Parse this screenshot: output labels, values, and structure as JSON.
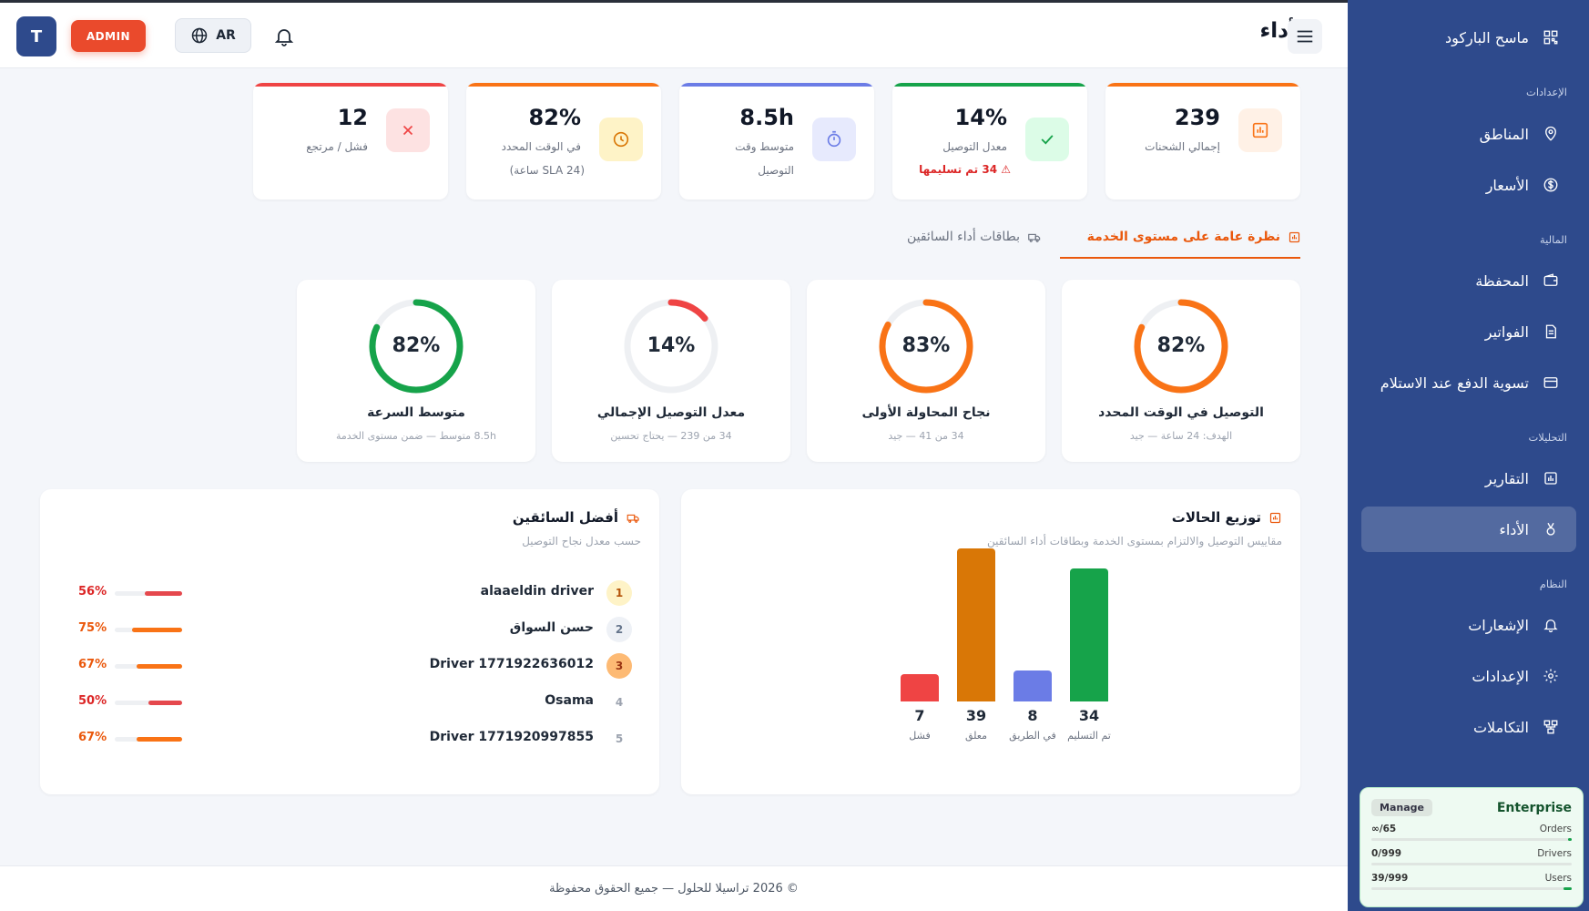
{
  "header": {
    "title": "الأداء",
    "avatar_letter": "T",
    "role_badge": "ADMIN",
    "language": "AR"
  },
  "kpis": [
    {
      "value": "239",
      "label": "إجمالي الشحنات",
      "accent": "#f97316"
    },
    {
      "value": "14%",
      "label": "معدل التوصيل",
      "warning": "34 تم تسليمها",
      "accent": "#16a34a"
    },
    {
      "value": "8.5h",
      "label": "متوسط وقت",
      "label2": "التوصيل",
      "accent": "#6b7ce6"
    },
    {
      "value": "82%",
      "label": "في الوقت المحدد",
      "label2": "(SLA 24 ساعة)",
      "accent": "#f97316"
    },
    {
      "value": "12",
      "label": "فشل / مرتجع",
      "accent": "#ef4444"
    }
  ],
  "tabs": {
    "active": "نظرة عامة على مستوى الخدمة",
    "inactive": "بطاقات أداء السائقين"
  },
  "gauges": [
    {
      "value": "82%",
      "percent": 82,
      "title": "التوصيل في الوقت المحدد",
      "subtitle": "الهدف: 24 ساعة — جيد",
      "color": "#f97316"
    },
    {
      "value": "83%",
      "percent": 83,
      "title": "نجاح المحاولة الأولى",
      "subtitle": "34 من 41 — جيد",
      "color": "#f97316"
    },
    {
      "value": "14%",
      "percent": 14,
      "title": "معدل التوصيل الإجمالي",
      "subtitle": "34 من 239 — يحتاج تحسين",
      "color": "#ef4444"
    },
    {
      "value": "82%",
      "percent": 82,
      "title": "متوسط السرعة",
      "subtitle": "8.5h متوسط — ضمن مستوى الخدمة",
      "color": "#16a34a"
    }
  ],
  "status_panel": {
    "title": "توزيع الحالات",
    "subtitle": "مقاييس التوصيل والالتزام بمستوى الخدمة وبطاقات أداء السائقين"
  },
  "chart_data": {
    "type": "bar",
    "title": "توزيع الحالات",
    "categories": [
      "تم التسليم",
      "في الطريق",
      "معلق",
      "فشل"
    ],
    "values": [
      34,
      8,
      39,
      7
    ],
    "colors": [
      "#16a34a",
      "#6b7ce6",
      "#d97706",
      "#ef4444"
    ],
    "ylim": [
      0,
      39
    ]
  },
  "drivers_panel": {
    "title": "أفضل السائقين",
    "subtitle": "حسب معدل نجاح التوصيل",
    "drivers": [
      {
        "rank": "1",
        "name": "alaaeldin driver",
        "pct": "56%",
        "percent": 56,
        "color": "#e5484d",
        "pct_color": "#dc2626",
        "rank_bg": "#fef3c7",
        "rank_color": "#b45309"
      },
      {
        "rank": "2",
        "name": "حسن السواق",
        "pct": "75%",
        "percent": 75,
        "color": "#f97316",
        "pct_color": "#ea580c",
        "rank_bg": "#eef1f6",
        "rank_color": "#64748b"
      },
      {
        "rank": "3",
        "name": "Driver 1771922636012",
        "pct": "67%",
        "percent": 67,
        "color": "#f97316",
        "pct_color": "#ea580c",
        "rank_bg": "#fdba74",
        "rank_color": "#9a3412"
      },
      {
        "rank": "4",
        "name": "Osama",
        "pct": "50%",
        "percent": 50,
        "color": "#e5484d",
        "pct_color": "#dc2626",
        "rank_bg": "#ffffff",
        "rank_color": "#9ca3af"
      },
      {
        "rank": "5",
        "name": "Driver 1771920997855",
        "pct": "67%",
        "percent": 67,
        "color": "#f97316",
        "pct_color": "#ea580c",
        "rank_bg": "#ffffff",
        "rank_color": "#9ca3af"
      }
    ]
  },
  "sidebar": {
    "items": [
      {
        "label": "ماسح الباركود",
        "icon": "qr-icon"
      },
      {
        "label": "المناطق",
        "icon": "location-pin-icon"
      },
      {
        "label": "الأسعار",
        "icon": "dollar-icon"
      },
      {
        "label": "المحفظة",
        "icon": "wallet-icon"
      },
      {
        "label": "الفواتير",
        "icon": "invoice-icon"
      },
      {
        "label": "تسوية الدفع عند الاستلام",
        "icon": "card-icon"
      },
      {
        "label": "التقارير",
        "icon": "report-icon"
      },
      {
        "label": "الأداء",
        "icon": "medal-icon"
      },
      {
        "label": "الإشعارات",
        "icon": "bell-icon"
      },
      {
        "label": "الإعدادات",
        "icon": "gear-icon"
      },
      {
        "label": "التكاملات",
        "icon": "integrations-icon"
      }
    ],
    "sections": [
      "الإعدادات",
      "المالية",
      "التحليلات",
      "النظام"
    ]
  },
  "plan": {
    "name": "Enterprise",
    "manage": "Manage",
    "rows": [
      {
        "label": "Orders",
        "value": "∞/65",
        "percent": 2
      },
      {
        "label": "Drivers",
        "value": "0/999",
        "percent": 0
      },
      {
        "label": "Users",
        "value": "39/999",
        "percent": 4
      }
    ]
  },
  "footer": {
    "text": "© 2026 تراسيلا للحلول — جميع الحقوق محفوظة"
  }
}
